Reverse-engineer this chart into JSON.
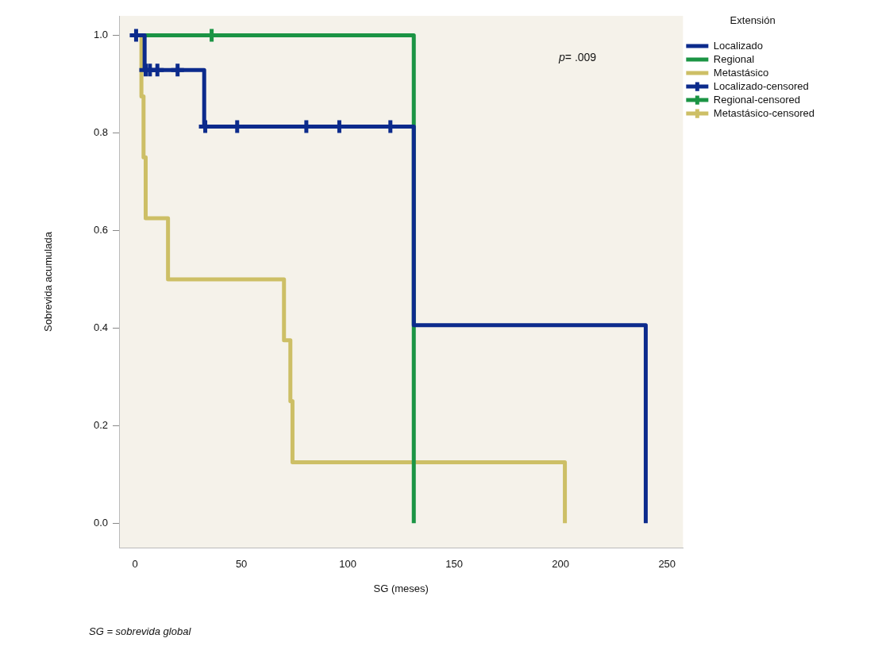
{
  "chart_data": {
    "type": "step",
    "xlabel": "SG (meses)",
    "ylabel": "Sobrevida acumulada",
    "legend_title": "Extensión",
    "legend": "right",
    "xlim": [
      -7.5,
      257.5
    ],
    "xticks": [
      0,
      50,
      100,
      150,
      200,
      250
    ],
    "ylim": [
      -0.05,
      1.04
    ],
    "yticks": [
      {
        "value": 0,
        "label": "0.0"
      },
      {
        "value": 0.2,
        "label": "0.2"
      },
      {
        "value": 0.4,
        "label": "0.4"
      },
      {
        "value": 0.6,
        "label": "0.6"
      },
      {
        "value": 0.8,
        "label": "0.8"
      },
      {
        "value": 1,
        "label": "1.0"
      }
    ],
    "annotations": [
      "p= .009",
      "SG = sobrevida global"
    ],
    "series": [
      {
        "name": "Localizado",
        "type": "step",
        "color": "#0c2b8c",
        "x": [
          0,
          4.5,
          32.5,
          131,
          240
        ],
        "values": [
          1,
          0.929,
          0.813,
          0.406,
          0
        ]
      },
      {
        "name": "Regional",
        "type": "step",
        "color": "#1b9444",
        "x": [
          0,
          131
        ],
        "values": [
          1,
          0
        ]
      },
      {
        "name": "Metastásico",
        "type": "step",
        "color": "#cdbf66",
        "x": [
          1,
          3,
          4,
          5,
          15.5,
          70,
          73,
          74,
          202
        ],
        "values": [
          1,
          0.875,
          0.75,
          0.625,
          0.5,
          0.375,
          0.25,
          0.125,
          0
        ]
      },
      {
        "name": "Localizado-censored",
        "type": "scatter",
        "marker": "cross",
        "color": "#0c2b8c",
        "x": [
          0.5,
          5,
          7,
          10.5,
          20,
          33,
          48,
          80.5,
          96,
          120
        ],
        "values": [
          1,
          0.929,
          0.929,
          0.929,
          0.929,
          0.813,
          0.813,
          0.813,
          0.813,
          0.813
        ]
      },
      {
        "name": "Regional-censored",
        "type": "scatter",
        "marker": "cross",
        "color": "#1b9444",
        "x": [
          36
        ],
        "values": [
          1
        ]
      },
      {
        "name": "Metastásico-censored",
        "type": "scatter",
        "marker": "cross",
        "color": "#cdbf66"
      }
    ]
  }
}
